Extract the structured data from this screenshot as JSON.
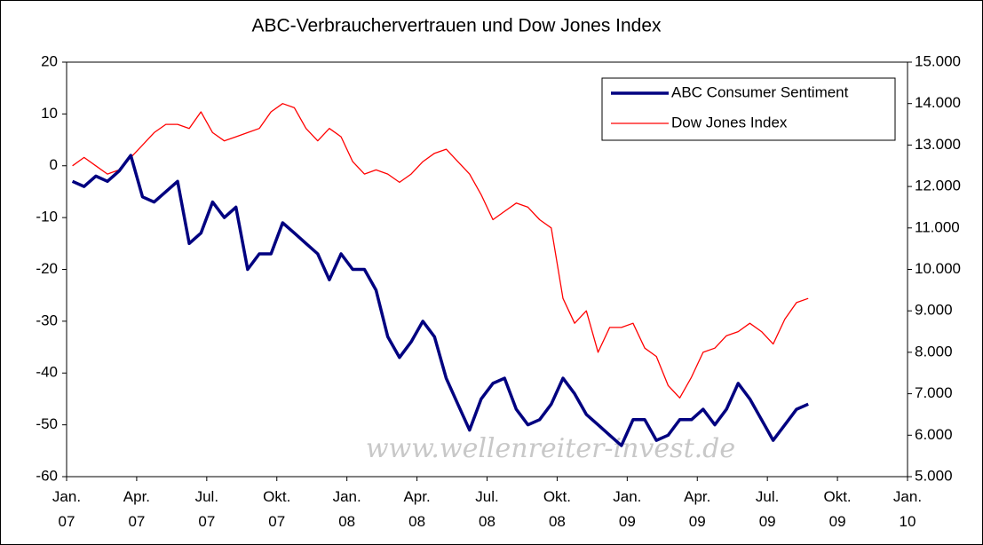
{
  "chart_data": {
    "type": "line",
    "title": "ABC-Verbrauchervertrauen und Dow Jones Index",
    "watermark": "www.wellenreiter-invest.de",
    "legend": "upper right",
    "xlim": [
      "2007-01",
      "2010-01"
    ],
    "xticks": [
      {
        "value": "2007-01",
        "label": "Jan. 07"
      },
      {
        "value": "2007-04",
        "label": "Apr. 07"
      },
      {
        "value": "2007-07",
        "label": "Jul. 07"
      },
      {
        "value": "2007-10",
        "label": "Okt. 07"
      },
      {
        "value": "2008-01",
        "label": "Jan. 08"
      },
      {
        "value": "2008-04",
        "label": "Apr. 08"
      },
      {
        "value": "2008-07",
        "label": "Jul. 08"
      },
      {
        "value": "2008-10",
        "label": "Okt. 08"
      },
      {
        "value": "2009-01",
        "label": "Jan. 09"
      },
      {
        "value": "2009-04",
        "label": "Apr. 09"
      },
      {
        "value": "2009-07",
        "label": "Jul. 09"
      },
      {
        "value": "2009-10",
        "label": "Okt. 09"
      },
      {
        "value": "2010-01",
        "label": "Jan. 10"
      }
    ],
    "ylim": [
      -60,
      20
    ],
    "yticks": [
      -60,
      -50,
      -40,
      -30,
      -20,
      -10,
      0,
      10,
      20
    ],
    "y2lim": [
      5000,
      15000
    ],
    "y2ticks": [
      {
        "value": 5000,
        "label": "5.000"
      },
      {
        "value": 6000,
        "label": "6.000"
      },
      {
        "value": 7000,
        "label": "7.000"
      },
      {
        "value": 8000,
        "label": "8.000"
      },
      {
        "value": 9000,
        "label": "9.000"
      },
      {
        "value": 10000,
        "label": "10.000"
      },
      {
        "value": 11000,
        "label": "11.000"
      },
      {
        "value": 12000,
        "label": "12.000"
      },
      {
        "value": 13000,
        "label": "13.000"
      },
      {
        "value": 14000,
        "label": "14.000"
      },
      {
        "value": 15000,
        "label": "15.000"
      }
    ],
    "x": [
      "2007-01",
      "2007-01",
      "2007-02",
      "2007-02",
      "2007-03",
      "2007-03",
      "2007-04",
      "2007-04",
      "2007-05",
      "2007-05",
      "2007-06",
      "2007-06",
      "2007-07",
      "2007-07",
      "2007-08",
      "2007-08",
      "2007-09",
      "2007-09",
      "2007-10",
      "2007-10",
      "2007-11",
      "2007-11",
      "2007-12",
      "2007-12",
      "2008-01",
      "2008-01",
      "2008-02",
      "2008-02",
      "2008-03",
      "2008-03",
      "2008-04",
      "2008-04",
      "2008-05",
      "2008-05",
      "2008-06",
      "2008-06",
      "2008-07",
      "2008-07",
      "2008-08",
      "2008-08",
      "2008-09",
      "2008-09",
      "2008-10",
      "2008-10",
      "2008-11",
      "2008-11",
      "2008-12",
      "2008-12",
      "2009-01",
      "2009-01",
      "2009-02",
      "2009-02",
      "2009-03",
      "2009-03",
      "2009-04",
      "2009-04",
      "2009-05",
      "2009-05",
      "2009-06",
      "2009-06",
      "2009-07",
      "2009-07",
      "2009-08",
      "2009-08"
    ],
    "series": [
      {
        "name": "ABC Consumer Sentiment",
        "color": "#000080",
        "width": 3.5,
        "axis": "y",
        "values": [
          -3,
          -4,
          -2,
          -3,
          -1,
          2,
          -6,
          -7,
          -5,
          -3,
          -15,
          -13,
          -7,
          -10,
          -8,
          -20,
          -17,
          -17,
          -11,
          -13,
          -15,
          -17,
          -22,
          -17,
          -20,
          -20,
          -24,
          -33,
          -37,
          -34,
          -30,
          -33,
          -41,
          -46,
          -51,
          -45,
          -42,
          -41,
          -47,
          -50,
          -49,
          -46,
          -41,
          -44,
          -48,
          -50,
          -52,
          -54,
          -49,
          -49,
          -53,
          -52,
          -49,
          -49,
          -47,
          -50,
          -47,
          -42,
          -45,
          -49,
          -53,
          -50,
          -47,
          -46
        ]
      },
      {
        "name": "Dow Jones Index",
        "color": "#ff0000",
        "width": 1.3,
        "axis": "y2",
        "values": [
          12500,
          12700,
          12500,
          12300,
          12400,
          12700,
          13000,
          13300,
          13500,
          13500,
          13400,
          13800,
          13300,
          13100,
          13200,
          13300,
          13400,
          13800,
          14000,
          13900,
          13400,
          13100,
          13400,
          13200,
          12600,
          12300,
          12400,
          12300,
          12100,
          12300,
          12600,
          12800,
          12900,
          12600,
          12300,
          11800,
          11200,
          11400,
          11600,
          11500,
          11200,
          11000,
          9300,
          8700,
          9000,
          8000,
          8600,
          8600,
          8700,
          8100,
          7900,
          7200,
          6900,
          7400,
          8000,
          8100,
          8400,
          8500,
          8700,
          8500,
          8200,
          8800,
          9200,
          9300
        ]
      }
    ]
  }
}
